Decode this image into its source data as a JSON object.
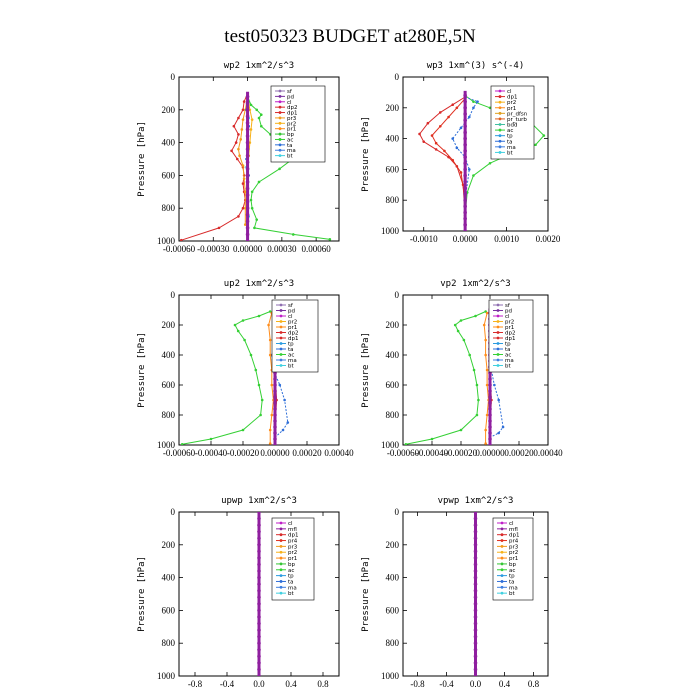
{
  "figure_title": "test050323  BUDGET at280E,5N",
  "legend_colors": {
    "sf": "#8f6fb0",
    "pd": "#7a2fa0",
    "cl": "#c01fc8",
    "mfl": "#8f1f9f",
    "dp2": "#d82a2a",
    "dp1": "#d82a2a",
    "pr4": "#e03020",
    "pr3": "#f39a1c",
    "pr2": "#f7b21a",
    "pr1": "#ff8c1a",
    "bp": "#35c535",
    "ac": "#35d035",
    "ta": "#2f6fd8",
    "tp": "#2a9be0",
    "ma": "#3f7fe0",
    "bt": "#40d0e0",
    "pr_dfsn": "#e0a020",
    "pr_turb": "#e06020",
    "bdd": "#40c0a0"
  },
  "chart_data": [
    {
      "type": "line",
      "title": "wp2  1xm^2/s^3",
      "ylabel": "Pressure [hPa]",
      "xlim": [
        -0.0006,
        0.0008
      ],
      "ylim": [
        1000,
        0
      ],
      "xticks": [
        -0.0006,
        -0.0003,
        0.0,
        0.0003,
        0.0006
      ],
      "xticklabels": [
        "-0.00060",
        "-0.00030",
        "0.00000",
        "0.00030",
        "0.00060"
      ],
      "yticks": [
        0,
        200,
        400,
        600,
        800,
        1000
      ],
      "legend": [
        "sf",
        "pd",
        "cl",
        "dp2",
        "dp1",
        "pr3",
        "pr2",
        "pr1",
        "bp",
        "ac",
        "ta",
        "ma",
        "bt"
      ],
      "series": [
        {
          "name": "ac",
          "color": "#35d035",
          "x": [
            0.0,
            3e-05,
            8e-05,
            0.00012,
            0.0001,
            0.00012,
            0.0002,
            0.00032,
            0.00045,
            0.00028,
            0.0001,
            4e-05,
            3e-05,
            4e-05,
            8e-05,
            6e-05,
            0.0004,
            0.00072
          ],
          "y": [
            120,
            170,
            200,
            230,
            250,
            300,
            350,
            400,
            470,
            560,
            640,
            700,
            750,
            800,
            870,
            920,
            960,
            990
          ]
        },
        {
          "name": "dp2",
          "color": "#d82a2a",
          "x": [
            0.0,
            -3e-05,
            -4e-05,
            -8e-05,
            -0.00012,
            -8e-05,
            -0.0001,
            -0.00014,
            -9e-05,
            -4e-05,
            -3e-05,
            -4e-05,
            -3e-05,
            -2e-05,
            -4e-05,
            -8e-05,
            -0.00025,
            -0.00058
          ],
          "y": [
            100,
            150,
            200,
            250,
            300,
            350,
            400,
            450,
            500,
            550,
            600,
            650,
            700,
            750,
            800,
            850,
            920,
            995
          ]
        },
        {
          "name": "pr3",
          "color": "#f39a1c",
          "x": [
            0.0,
            -2e-05,
            -4e-05,
            -5e-05,
            -6e-05,
            -8e-05,
            -7e-05,
            -4e-05,
            -3e-05,
            -2e-05,
            -2e-05,
            -2e-05
          ],
          "y": [
            120,
            200,
            260,
            320,
            380,
            440,
            480,
            540,
            620,
            700,
            800,
            900
          ]
        },
        {
          "name": "pr2",
          "color": "#f7b21a",
          "x": [
            0.0,
            2e-05,
            4e-05,
            3e-05,
            2e-05,
            1e-05,
            0.0,
            -1e-05
          ],
          "y": [
            120,
            200,
            260,
            320,
            400,
            480,
            600,
            800
          ]
        },
        {
          "name": "ta",
          "color": "#2f6fd8",
          "x": [
            0.0,
            -1e-05,
            1e-05,
            0.0,
            -1e-05,
            1e-05,
            0.0,
            0.0
          ],
          "y": [
            130,
            200,
            300,
            400,
            500,
            600,
            700,
            800
          ]
        },
        {
          "name": "bt",
          "color": "#40d0e0",
          "x": [
            0.0,
            1e-05,
            0.0,
            -1e-05,
            0.0,
            1e-05,
            0.0
          ],
          "y": [
            120,
            250,
            400,
            550,
            700,
            850,
            1000
          ]
        },
        {
          "name": "cl",
          "color": "#c01fc8",
          "x": [
            0.0,
            0.0,
            0.0,
            0.0,
            0.0,
            0.0
          ],
          "y": [
            100,
            250,
            400,
            600,
            800,
            1000
          ]
        },
        {
          "name": "pd",
          "color": "#7a2fa0",
          "x": [
            0.0,
            0.0,
            0.0,
            0.0,
            0.0,
            0.0
          ],
          "y": [
            100,
            250,
            400,
            600,
            800,
            1000
          ]
        }
      ]
    },
    {
      "type": "line",
      "title": "wp3  1xm^(3) s^(-4)",
      "ylabel": "Pressure [hPa]",
      "xlim": [
        -0.0015,
        0.002
      ],
      "ylim": [
        1000,
        0
      ],
      "xticks": [
        -0.001,
        0.0,
        0.001,
        0.002
      ],
      "xticklabels": [
        "-0.0010",
        "0.0000",
        "0.0010",
        "0.0020"
      ],
      "yticks": [
        0,
        200,
        400,
        600,
        800,
        1000
      ],
      "legend": [
        "cl",
        "dp1",
        "pr2",
        "pr1",
        "pr_dfsn",
        "pr_turb",
        "bdd",
        "ac",
        "tp",
        "ta",
        "ma",
        "bt"
      ],
      "series": [
        {
          "name": "ac",
          "color": "#35d035",
          "x": [
            0.0,
            0.0002,
            0.0006,
            0.0011,
            0.0016,
            0.0019,
            0.0017,
            0.0011,
            0.0006,
            0.0002,
            5e-05,
            0.0
          ],
          "y": [
            120,
            160,
            200,
            250,
            300,
            380,
            440,
            500,
            560,
            640,
            750,
            900
          ]
        },
        {
          "name": "dp1",
          "color": "#d82a2a",
          "x": [
            0.0,
            -0.0003,
            -0.0006,
            -0.0009,
            -0.0011,
            -0.001,
            -0.0007,
            -0.0004,
            -0.0002,
            -5e-05,
            0.0
          ],
          "y": [
            130,
            180,
            230,
            300,
            370,
            420,
            470,
            520,
            580,
            700,
            900
          ]
        },
        {
          "name": "pr1",
          "color": "#e03020",
          "x": [
            0.0,
            -0.0002,
            -0.0004,
            -0.0006,
            -0.0008,
            -0.0007,
            -0.0005,
            -0.0003,
            -0.0001,
            0.0
          ],
          "y": [
            140,
            200,
            260,
            320,
            380,
            430,
            480,
            540,
            620,
            800
          ]
        },
        {
          "name": "ta",
          "color": "#2f6fd8",
          "x": [
            0.0,
            0.0003,
            0.0002,
            0.0001,
            -0.0001,
            -0.0003,
            -0.0002,
            0.0,
            0.0001,
            0.0
          ],
          "y": [
            130,
            160,
            200,
            260,
            330,
            400,
            460,
            520,
            600,
            800
          ]
        },
        {
          "name": "cl",
          "color": "#c01fc8",
          "x": [
            0.0,
            0.0,
            0.0,
            0.0,
            0.0
          ],
          "y": [
            100,
            300,
            500,
            750,
            1000
          ]
        }
      ]
    },
    {
      "type": "line",
      "title": "up2  1xm^2/s^3",
      "ylabel": "Pressure [hPa]",
      "xlim": [
        -0.0006,
        0.0004
      ],
      "ylim": [
        1000,
        0
      ],
      "xticks": [
        -0.0006,
        -0.0004,
        -0.0002,
        0.0,
        0.0002,
        0.0004
      ],
      "xticklabels": [
        "-0.00060",
        "-0.00040",
        "-0.00020",
        "0.00000",
        "0.00020",
        "0.00040"
      ],
      "yticks": [
        0,
        200,
        400,
        600,
        800,
        1000
      ],
      "legend": [
        "sf",
        "pd",
        "cl",
        "pr2",
        "pr1",
        "dp2",
        "dp1",
        "tp",
        "ta",
        "ac",
        "ma",
        "bt"
      ],
      "series": [
        {
          "name": "ac",
          "color": "#35d035",
          "x": [
            -3e-05,
            -0.0001,
            -0.0002,
            -0.00025,
            -0.00023,
            -0.00019,
            -0.00015,
            -0.00012,
            -0.0001,
            -8e-05,
            -9e-05,
            -0.0002,
            -0.0004,
            -0.00058
          ],
          "y": [
            110,
            140,
            170,
            200,
            240,
            300,
            400,
            500,
            600,
            700,
            800,
            900,
            960,
            995
          ]
        },
        {
          "name": "ta",
          "color": "#2f6fd8",
          "x": [
            0.0,
            4e-05,
            6e-05,
            3e-05,
            0.0,
            -2e-05,
            -1e-05,
            3e-05,
            6e-05,
            8e-05,
            5e-05,
            0.0
          ],
          "y": [
            120,
            150,
            200,
            260,
            330,
            400,
            500,
            600,
            700,
            850,
            900,
            950
          ]
        },
        {
          "name": "pr1",
          "color": "#ff8c1a",
          "x": [
            -2e-05,
            -4e-05,
            -3e-05,
            -3e-05,
            -2e-05,
            -2e-05,
            -1e-05,
            -2e-05,
            -3e-05,
            -3e-05
          ],
          "y": [
            120,
            200,
            300,
            400,
            500,
            600,
            700,
            800,
            900,
            990
          ]
        },
        {
          "name": "dp1",
          "color": "#d82a2a",
          "x": [
            0.0,
            1e-05,
            0.0,
            1e-05,
            0.0,
            0.0
          ],
          "y": [
            100,
            300,
            500,
            700,
            900,
            1000
          ]
        },
        {
          "name": "sf",
          "color": "#8f6fb0",
          "x": [
            0.0,
            0.0,
            0.0,
            0.0
          ],
          "y": [
            100,
            400,
            700,
            1000
          ]
        }
      ]
    },
    {
      "type": "line",
      "title": "vp2  1xm^2/s^3",
      "ylabel": "Pressure [hPa]",
      "xlim": [
        -0.0006,
        0.0004
      ],
      "ylim": [
        1000,
        0
      ],
      "xticks": [
        -0.0006,
        -0.0004,
        -0.0002,
        0.0,
        0.0002,
        0.0004
      ],
      "xticklabels": [
        "-0.00060",
        "-0.00040",
        "-0.00020",
        "0.00000",
        "0.00020",
        "0.00040"
      ],
      "yticks": [
        0,
        200,
        400,
        600,
        800,
        1000
      ],
      "legend": [
        "sf",
        "pd",
        "cl",
        "pr2",
        "pr1",
        "dp2",
        "dp1",
        "tp",
        "ta",
        "ac",
        "ma",
        "bt"
      ],
      "series": [
        {
          "name": "ac",
          "color": "#35d035",
          "x": [
            -3e-05,
            -0.0001,
            -0.0002,
            -0.00024,
            -0.00022,
            -0.00018,
            -0.00014,
            -0.00011,
            -9e-05,
            -8e-05,
            -9e-05,
            -0.0002,
            -0.0004,
            -0.00058
          ],
          "y": [
            110,
            140,
            170,
            200,
            240,
            300,
            400,
            500,
            600,
            700,
            800,
            900,
            960,
            995
          ]
        },
        {
          "name": "ta",
          "color": "#2f6fd8",
          "x": [
            0.0,
            3e-05,
            7e-05,
            4e-05,
            2e-05,
            0.0,
            1e-05,
            3e-05,
            6e-05,
            9e-05,
            6e-05,
            0.0
          ],
          "y": [
            120,
            150,
            200,
            260,
            330,
            400,
            500,
            600,
            700,
            880,
            920,
            950
          ]
        },
        {
          "name": "pr1",
          "color": "#ff8c1a",
          "x": [
            -2e-05,
            -4e-05,
            -3e-05,
            -3e-05,
            -2e-05,
            -2e-05,
            -1e-05,
            -2e-05,
            -3e-05,
            -3e-05
          ],
          "y": [
            120,
            200,
            300,
            400,
            500,
            600,
            700,
            800,
            900,
            990
          ]
        },
        {
          "name": "dp1",
          "color": "#d82a2a",
          "x": [
            0.0,
            1e-05,
            0.0,
            1e-05,
            0.0,
            0.0
          ],
          "y": [
            100,
            300,
            500,
            700,
            900,
            1000
          ]
        },
        {
          "name": "sf",
          "color": "#8f6fb0",
          "x": [
            0.0,
            0.0,
            0.0,
            0.0
          ],
          "y": [
            100,
            400,
            700,
            1000
          ]
        }
      ]
    },
    {
      "type": "line",
      "title": "upwp  1xm^2/s^3",
      "ylabel": "Pressure [hPa]",
      "xlim": [
        -1.0,
        1.0
      ],
      "ylim": [
        1000,
        0
      ],
      "xticks": [
        -0.8,
        -0.4,
        0.0,
        0.4,
        0.8
      ],
      "xticklabels": [
        "-0.8",
        "-0.4",
        "0.0",
        "0.4",
        "0.8"
      ],
      "yticks": [
        0,
        200,
        400,
        600,
        800,
        1000
      ],
      "legend": [
        "cl",
        "mfl",
        "dp1",
        "pr4",
        "pr3",
        "pr2",
        "pr1",
        "bp",
        "ac",
        "tp",
        "ta",
        "ma",
        "bt"
      ],
      "series": [
        {
          "name": "cl",
          "color": "#8f1f9f",
          "x": [
            0.0,
            0.0,
            0.0,
            0.0,
            0.0,
            0.0
          ],
          "y": [
            0,
            200,
            400,
            600,
            800,
            1000
          ]
        }
      ]
    },
    {
      "type": "line",
      "title": "vpwp  1xm^2/s^3",
      "ylabel": "Pressure [hPa]",
      "xlim": [
        -1.0,
        1.0
      ],
      "ylim": [
        1000,
        0
      ],
      "xticks": [
        -0.8,
        -0.4,
        0.0,
        0.4,
        0.8
      ],
      "xticklabels": [
        "-0.8",
        "-0.4",
        "0.0",
        "0.4",
        "0.8"
      ],
      "yticks": [
        0,
        200,
        400,
        600,
        800,
        1000
      ],
      "legend": [
        "cl",
        "mfl",
        "dp1",
        "pr4",
        "pr3",
        "pr2",
        "pr1",
        "bp",
        "ac",
        "tp",
        "ta",
        "ma",
        "bt"
      ],
      "series": [
        {
          "name": "cl",
          "color": "#8f1f9f",
          "x": [
            0.0,
            0.0,
            0.0,
            0.0,
            0.0,
            0.0
          ],
          "y": [
            0,
            200,
            400,
            600,
            800,
            1000
          ]
        }
      ]
    }
  ]
}
